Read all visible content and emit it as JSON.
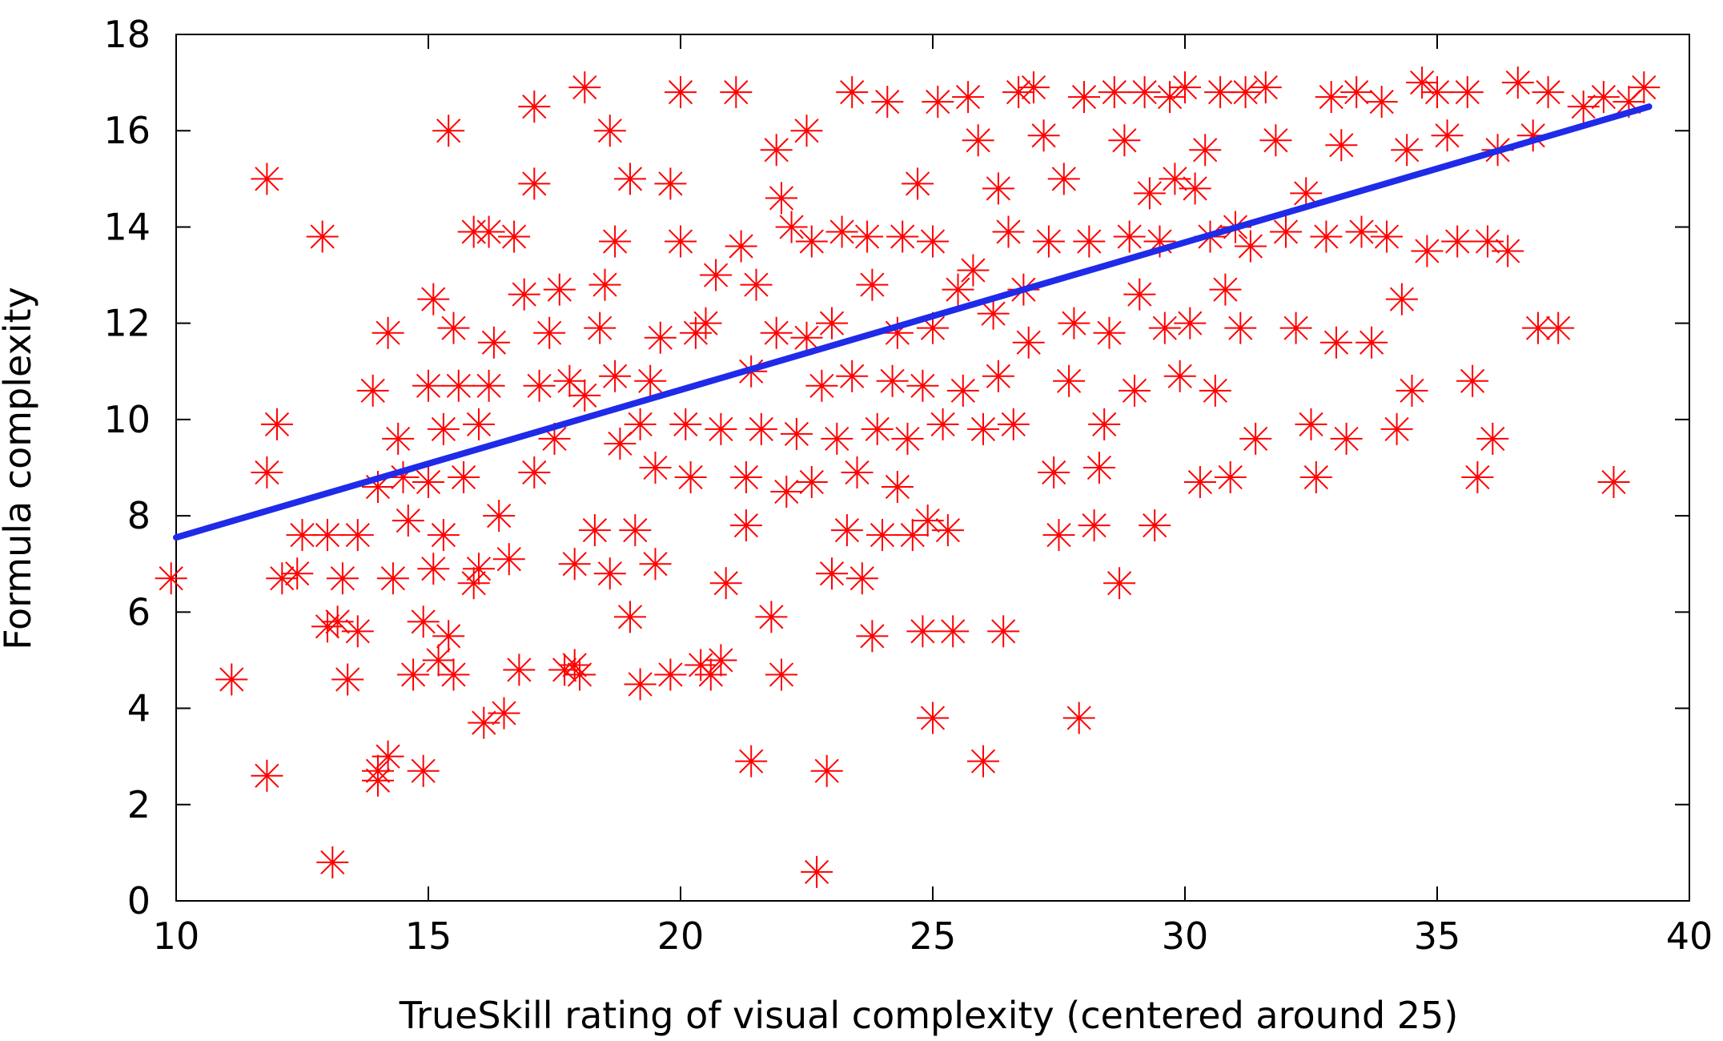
{
  "chart_data": {
    "type": "scatter",
    "title": "",
    "xlabel": "TrueSkill rating of visual complexity (centered around 25)",
    "ylabel": "Formula complexity",
    "xlim": [
      10,
      40
    ],
    "ylim": [
      0,
      18
    ],
    "xticks": [
      "10",
      "15",
      "20",
      "25",
      "30",
      "35",
      "40"
    ],
    "yticks": [
      "0",
      "2",
      "4",
      "6",
      "8",
      "10",
      "12",
      "14",
      "16",
      "18"
    ],
    "grid": false,
    "legend": "none",
    "colors": {
      "points": "#ff0000",
      "fit_line": "#1f2be8",
      "axes": "#000000"
    },
    "marker": "asterisk",
    "series": [
      {
        "type": "scatter",
        "points": [
          [
            9.9,
            6.7
          ],
          [
            11.1,
            4.6
          ],
          [
            11.8,
            2.6
          ],
          [
            11.8,
            8.9
          ],
          [
            11.8,
            15.0
          ],
          [
            12.0,
            9.9
          ],
          [
            12.1,
            6.7
          ],
          [
            12.4,
            6.8
          ],
          [
            12.5,
            7.6
          ],
          [
            12.9,
            13.8
          ],
          [
            13.0,
            7.6
          ],
          [
            13.0,
            5.7
          ],
          [
            13.1,
            0.8
          ],
          [
            13.2,
            5.8
          ],
          [
            13.3,
            6.7
          ],
          [
            13.4,
            4.6
          ],
          [
            13.6,
            7.6
          ],
          [
            13.6,
            5.6
          ],
          [
            13.9,
            10.6
          ],
          [
            14.0,
            2.7
          ],
          [
            14.0,
            2.5
          ],
          [
            14.0,
            8.6
          ],
          [
            14.2,
            11.8
          ],
          [
            14.2,
            3.0
          ],
          [
            14.3,
            6.7
          ],
          [
            14.4,
            9.6
          ],
          [
            14.5,
            8.8
          ],
          [
            14.6,
            7.9
          ],
          [
            14.7,
            4.7
          ],
          [
            14.9,
            2.7
          ],
          [
            14.9,
            5.8
          ],
          [
            15.0,
            10.7
          ],
          [
            15.0,
            8.7
          ],
          [
            15.1,
            12.5
          ],
          [
            15.1,
            6.9
          ],
          [
            15.2,
            5.0
          ],
          [
            15.3,
            9.8
          ],
          [
            15.3,
            7.6
          ],
          [
            15.4,
            16.0
          ],
          [
            15.4,
            5.5
          ],
          [
            15.5,
            11.9
          ],
          [
            15.5,
            4.7
          ],
          [
            15.6,
            10.7
          ],
          [
            15.7,
            8.8
          ],
          [
            15.9,
            6.6
          ],
          [
            15.9,
            13.9
          ],
          [
            16.0,
            9.9
          ],
          [
            16.0,
            6.9
          ],
          [
            16.1,
            3.7
          ],
          [
            16.2,
            10.7
          ],
          [
            16.2,
            13.9
          ],
          [
            16.3,
            11.6
          ],
          [
            16.4,
            8.0
          ],
          [
            16.5,
            3.9
          ],
          [
            16.6,
            7.1
          ],
          [
            16.7,
            13.8
          ],
          [
            16.8,
            4.8
          ],
          [
            16.9,
            12.6
          ],
          [
            17.1,
            14.9
          ],
          [
            17.1,
            8.9
          ],
          [
            17.1,
            16.5
          ],
          [
            17.2,
            10.7
          ],
          [
            17.4,
            11.8
          ],
          [
            17.5,
            9.6
          ],
          [
            17.6,
            12.7
          ],
          [
            17.7,
            4.8
          ],
          [
            17.8,
            10.8
          ],
          [
            17.9,
            7.0
          ],
          [
            17.9,
            4.9
          ],
          [
            18.0,
            4.7
          ],
          [
            18.1,
            16.9
          ],
          [
            18.1,
            10.5
          ],
          [
            18.3,
            7.7
          ],
          [
            18.4,
            11.9
          ],
          [
            18.5,
            12.8
          ],
          [
            18.6,
            6.8
          ],
          [
            18.6,
            16.0
          ],
          [
            18.7,
            13.7
          ],
          [
            18.7,
            10.9
          ],
          [
            18.8,
            9.5
          ],
          [
            19.0,
            15.0
          ],
          [
            19.0,
            5.9
          ],
          [
            19.1,
            7.7
          ],
          [
            19.2,
            9.9
          ],
          [
            19.2,
            4.5
          ],
          [
            19.4,
            10.8
          ],
          [
            19.5,
            7.0
          ],
          [
            19.5,
            9.0
          ],
          [
            19.6,
            11.7
          ],
          [
            19.8,
            14.9
          ],
          [
            19.8,
            4.7
          ],
          [
            20.0,
            16.8
          ],
          [
            20.0,
            13.7
          ],
          [
            20.1,
            9.9
          ],
          [
            20.2,
            8.8
          ],
          [
            20.3,
            11.8
          ],
          [
            20.4,
            4.9
          ],
          [
            20.5,
            12.0
          ],
          [
            20.6,
            4.7
          ],
          [
            20.7,
            13.0
          ],
          [
            20.8,
            9.8
          ],
          [
            20.8,
            5.0
          ],
          [
            20.9,
            6.6
          ],
          [
            21.1,
            16.8
          ],
          [
            21.2,
            13.6
          ],
          [
            21.3,
            8.8
          ],
          [
            21.3,
            7.8
          ],
          [
            21.4,
            11.0
          ],
          [
            21.4,
            2.9
          ],
          [
            21.5,
            12.8
          ],
          [
            21.6,
            9.8
          ],
          [
            21.8,
            5.9
          ],
          [
            21.9,
            15.6
          ],
          [
            21.9,
            11.8
          ],
          [
            22.0,
            4.7
          ],
          [
            22.0,
            14.6
          ],
          [
            22.1,
            8.5
          ],
          [
            22.2,
            14.0
          ],
          [
            22.3,
            9.7
          ],
          [
            22.5,
            16.0
          ],
          [
            22.5,
            11.7
          ],
          [
            22.6,
            13.7
          ],
          [
            22.6,
            8.7
          ],
          [
            22.7,
            0.6
          ],
          [
            22.8,
            10.7
          ],
          [
            22.9,
            2.7
          ],
          [
            23.0,
            6.8
          ],
          [
            23.0,
            12.0
          ],
          [
            23.1,
            9.6
          ],
          [
            23.2,
            13.9
          ],
          [
            23.3,
            7.7
          ],
          [
            23.4,
            16.8
          ],
          [
            23.4,
            10.9
          ],
          [
            23.5,
            8.9
          ],
          [
            23.6,
            6.7
          ],
          [
            23.7,
            13.8
          ],
          [
            23.8,
            12.8
          ],
          [
            23.8,
            5.5
          ],
          [
            23.9,
            9.8
          ],
          [
            24.0,
            7.6
          ],
          [
            24.1,
            16.6
          ],
          [
            24.2,
            10.8
          ],
          [
            24.3,
            11.8
          ],
          [
            24.3,
            8.6
          ],
          [
            24.4,
            13.8
          ],
          [
            24.5,
            9.6
          ],
          [
            24.6,
            7.6
          ],
          [
            24.7,
            14.9
          ],
          [
            24.8,
            5.6
          ],
          [
            24.8,
            10.7
          ],
          [
            24.9,
            7.9
          ],
          [
            25.0,
            13.7
          ],
          [
            25.0,
            11.9
          ],
          [
            25.0,
            3.8
          ],
          [
            25.1,
            16.6
          ],
          [
            25.2,
            9.9
          ],
          [
            25.3,
            7.7
          ],
          [
            25.4,
            5.6
          ],
          [
            25.5,
            12.7
          ],
          [
            25.6,
            10.6
          ],
          [
            25.7,
            16.7
          ],
          [
            25.8,
            13.1
          ],
          [
            25.9,
            15.8
          ],
          [
            26.0,
            2.9
          ],
          [
            26.0,
            9.8
          ],
          [
            26.2,
            12.2
          ],
          [
            26.3,
            14.8
          ],
          [
            26.3,
            10.9
          ],
          [
            26.4,
            5.6
          ],
          [
            26.5,
            13.9
          ],
          [
            26.6,
            9.9
          ],
          [
            26.7,
            16.8
          ],
          [
            26.8,
            12.7
          ],
          [
            26.9,
            11.6
          ],
          [
            27.0,
            16.9
          ],
          [
            27.2,
            15.9
          ],
          [
            27.3,
            13.7
          ],
          [
            27.4,
            8.9
          ],
          [
            27.5,
            7.6
          ],
          [
            27.6,
            15.0
          ],
          [
            27.7,
            10.8
          ],
          [
            27.8,
            12.0
          ],
          [
            27.9,
            3.8
          ],
          [
            28.0,
            16.7
          ],
          [
            28.1,
            13.7
          ],
          [
            28.2,
            7.8
          ],
          [
            28.3,
            9.0
          ],
          [
            28.4,
            9.9
          ],
          [
            28.5,
            11.8
          ],
          [
            28.6,
            16.8
          ],
          [
            28.7,
            6.6
          ],
          [
            28.8,
            15.8
          ],
          [
            28.9,
            13.8
          ],
          [
            29.0,
            10.6
          ],
          [
            29.1,
            12.6
          ],
          [
            29.2,
            16.8
          ],
          [
            29.3,
            14.7
          ],
          [
            29.4,
            7.8
          ],
          [
            29.5,
            13.7
          ],
          [
            29.6,
            11.9
          ],
          [
            29.7,
            16.7
          ],
          [
            29.8,
            15.0
          ],
          [
            29.9,
            10.9
          ],
          [
            30.0,
            16.9
          ],
          [
            30.1,
            12.0
          ],
          [
            30.2,
            14.8
          ],
          [
            30.3,
            8.7
          ],
          [
            30.4,
            15.6
          ],
          [
            30.5,
            13.8
          ],
          [
            30.6,
            10.6
          ],
          [
            30.7,
            16.8
          ],
          [
            30.8,
            12.7
          ],
          [
            30.9,
            8.8
          ],
          [
            31.0,
            14.0
          ],
          [
            31.1,
            11.9
          ],
          [
            31.2,
            16.8
          ],
          [
            31.3,
            13.6
          ],
          [
            31.4,
            9.6
          ],
          [
            31.6,
            16.9
          ],
          [
            31.8,
            15.8
          ],
          [
            32.0,
            13.9
          ],
          [
            32.2,
            11.9
          ],
          [
            32.4,
            14.7
          ],
          [
            32.5,
            9.9
          ],
          [
            32.6,
            8.8
          ],
          [
            32.8,
            13.8
          ],
          [
            32.9,
            16.7
          ],
          [
            33.0,
            11.6
          ],
          [
            33.1,
            15.7
          ],
          [
            33.2,
            9.6
          ],
          [
            33.4,
            16.8
          ],
          [
            33.5,
            13.9
          ],
          [
            33.7,
            11.6
          ],
          [
            33.9,
            16.6
          ],
          [
            34.0,
            13.8
          ],
          [
            34.2,
            9.8
          ],
          [
            34.3,
            12.5
          ],
          [
            34.4,
            15.6
          ],
          [
            34.5,
            10.6
          ],
          [
            34.7,
            17.0
          ],
          [
            34.8,
            13.5
          ],
          [
            35.0,
            16.8
          ],
          [
            35.2,
            15.9
          ],
          [
            35.4,
            13.7
          ],
          [
            35.6,
            16.8
          ],
          [
            35.7,
            10.8
          ],
          [
            35.8,
            8.8
          ],
          [
            36.0,
            13.7
          ],
          [
            36.1,
            9.6
          ],
          [
            36.2,
            15.6
          ],
          [
            36.4,
            13.5
          ],
          [
            36.6,
            17.0
          ],
          [
            36.9,
            15.9
          ],
          [
            37.0,
            11.9
          ],
          [
            37.2,
            16.8
          ],
          [
            37.4,
            11.9
          ],
          [
            37.9,
            16.5
          ],
          [
            38.3,
            16.7
          ],
          [
            38.5,
            8.7
          ],
          [
            38.8,
            16.6
          ],
          [
            39.1,
            16.9
          ]
        ]
      },
      {
        "type": "line",
        "points": [
          [
            10.0,
            7.55
          ],
          [
            39.2,
            16.5
          ]
        ]
      }
    ]
  }
}
